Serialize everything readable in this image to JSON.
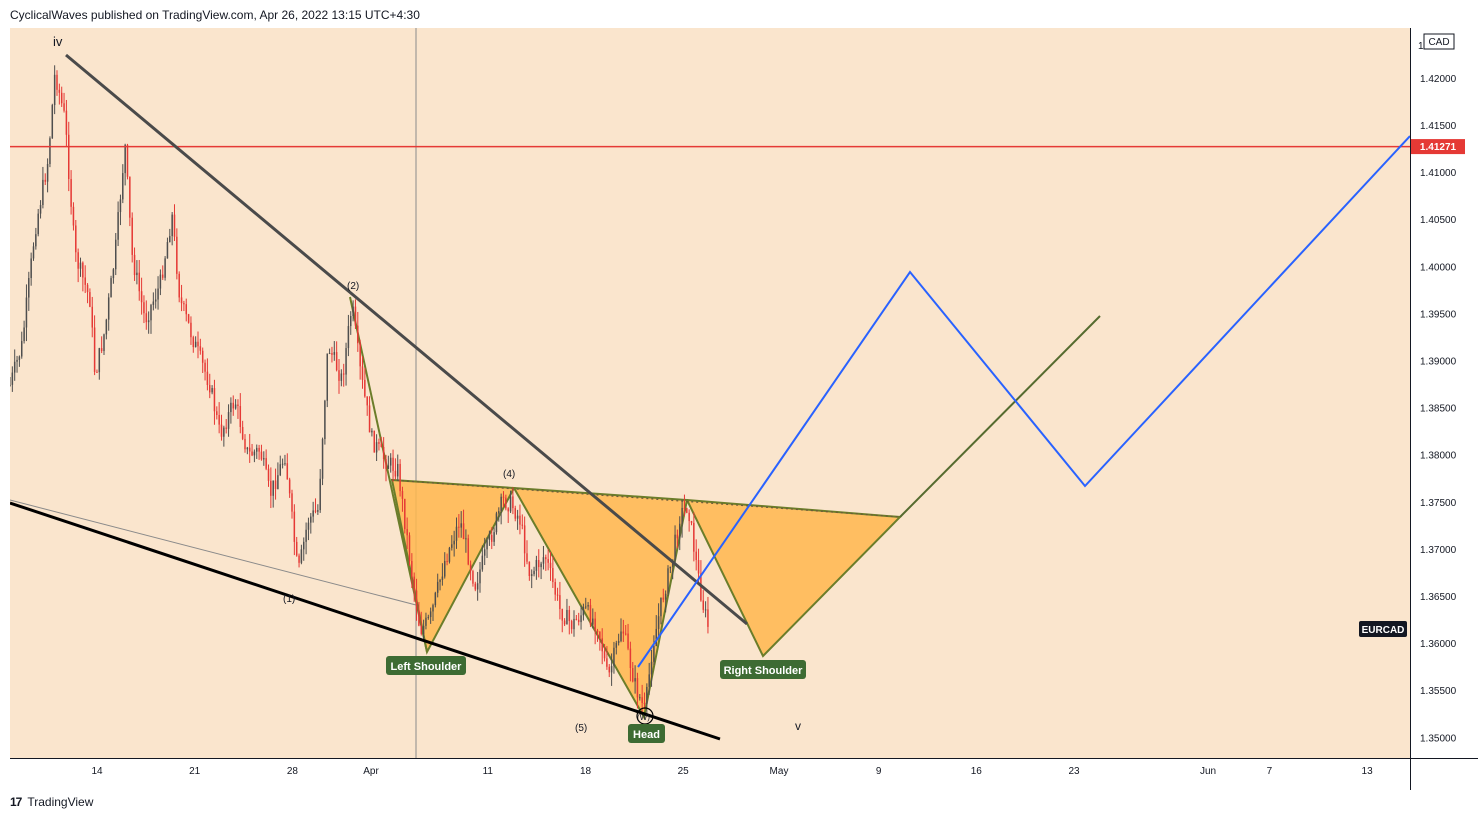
{
  "header": {
    "publisher": "CyclicalWaves published on TradingView.com, Apr 26, 2022 13:15 UTC+4:30"
  },
  "footer": {
    "brand": "TradingView",
    "logo_glyph": "17"
  },
  "colors": {
    "background": "#fae5cd",
    "candle_up": "#4e4e4e",
    "candle_down": "#e53935",
    "resistance": "#e53935",
    "projection_blue": "#2962ff",
    "projection_green": "#556b2f",
    "pattern_fill": "#ffb74d",
    "label_bg": "#3d6b33"
  },
  "chart_data": {
    "type": "candlestick",
    "symbol": "EURCAD",
    "currency": "CAD",
    "price_axis": {
      "ticks": [
        "1.42000",
        "1.41500",
        "1.41000",
        "1.40500",
        "1.40000",
        "1.39500",
        "1.39000",
        "1.38500",
        "1.38000",
        "1.37500",
        "1.37000",
        "1.36500",
        "1.36000",
        "1.35500",
        "1.35000"
      ],
      "range": [
        1.3478,
        1.4253
      ],
      "top_label": "1.42500"
    },
    "time_axis": {
      "ticks": [
        "14",
        "21",
        "28",
        "Apr",
        "11",
        "18",
        "25",
        "May",
        "9",
        "16",
        "23",
        "Jun",
        "7",
        "13"
      ]
    },
    "resistance_level": {
      "price": 1.41271,
      "label": "1.41271"
    },
    "wave_labels": [
      {
        "text": "iv",
        "date": "Mar 11",
        "price": 1.424
      },
      {
        "text": "(2)",
        "date": "Mar 31",
        "price": 1.3995
      },
      {
        "text": "(1)",
        "date": "Mar 28",
        "price": 1.3652
      },
      {
        "text": "(4)",
        "date": "Apr 12",
        "price": 1.379
      },
      {
        "text": "(5)",
        "date": "Apr 18",
        "price": 1.3516
      },
      {
        "text": "(W)",
        "date": "Apr 22",
        "price": 1.3528
      },
      {
        "text": "v",
        "date": "May 2",
        "price": 1.3518
      }
    ],
    "pattern_labels": [
      {
        "text": "Left Shoulder",
        "date": "Apr 5",
        "price": 1.3578
      },
      {
        "text": "Head",
        "date": "Apr 22",
        "price": 1.3515
      },
      {
        "text": "Right Shoulder",
        "date": "May 1",
        "price": 1.3575
      }
    ]
  }
}
